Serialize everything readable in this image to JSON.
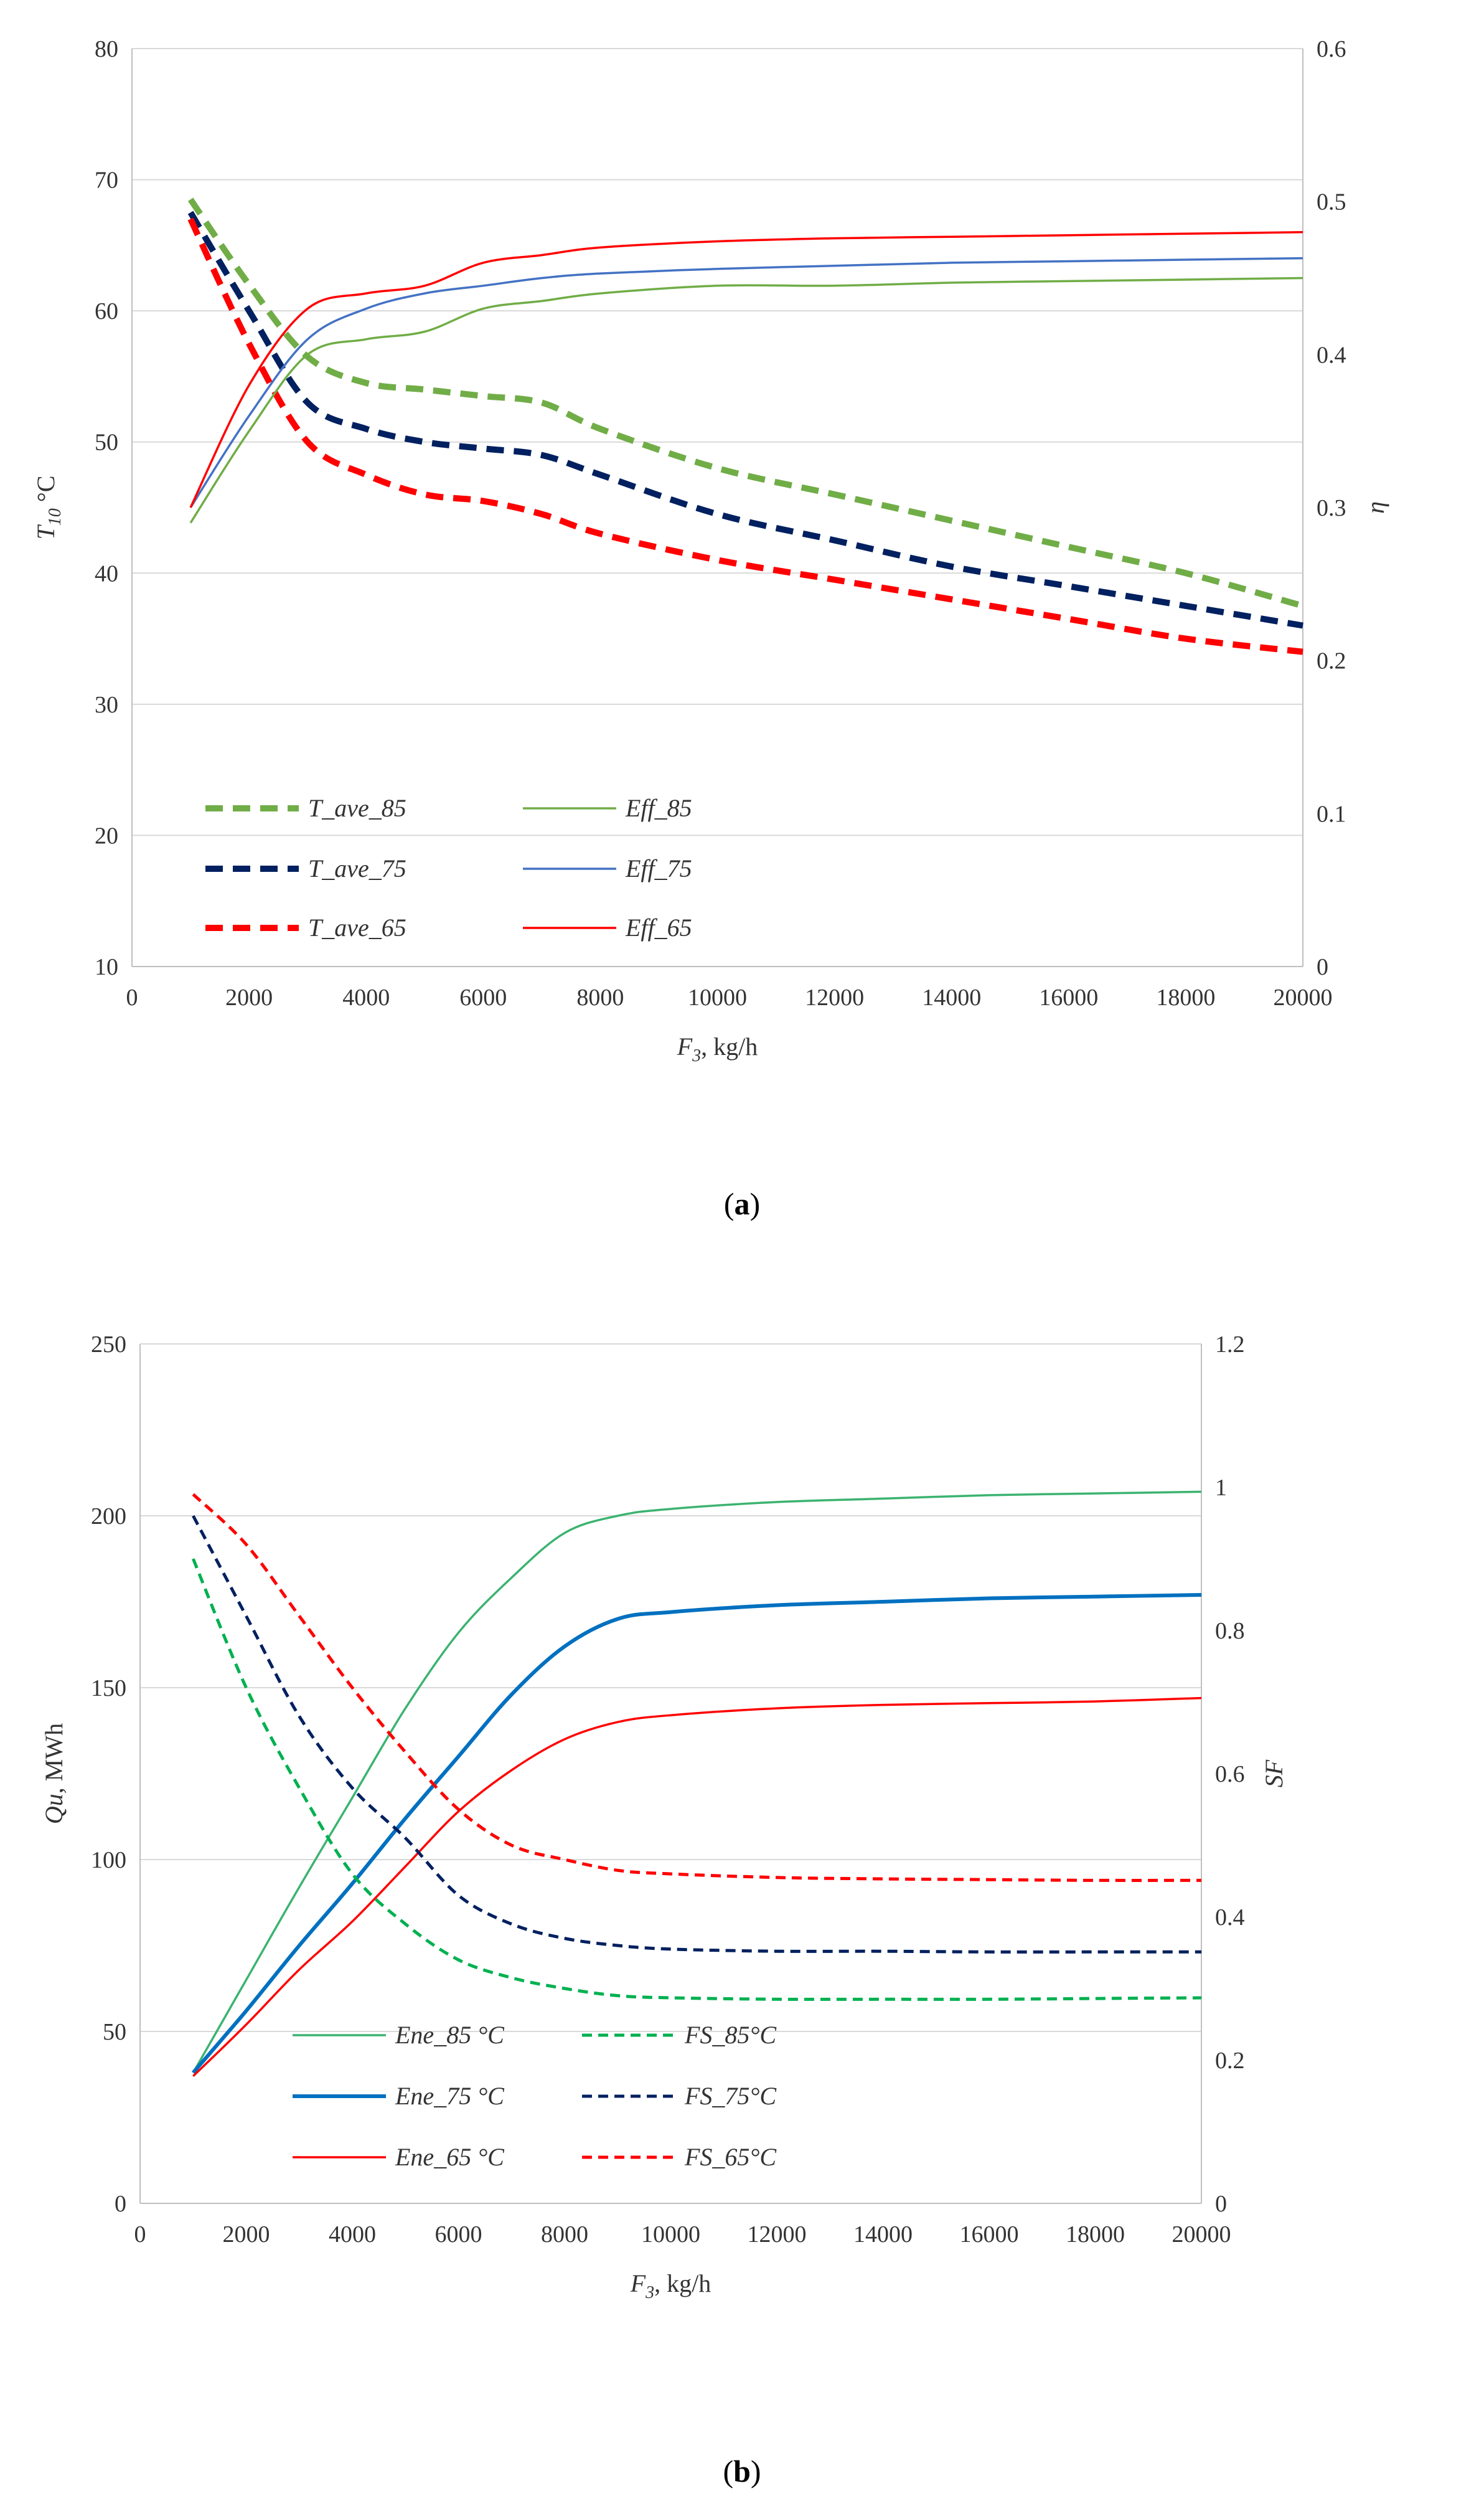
{
  "chart_data": [
    {
      "type": "line",
      "panel_label": "a",
      "xlabel": "F3, kg/h",
      "xlabel_main": "F",
      "xlabel_sub": "3",
      "xlabel_rest": ", kg/h",
      "ylabel": "T10 °C",
      "ylabel_main": "T",
      "ylabel_sub": "10",
      "ylabel_rest": " °C",
      "y2label": "η",
      "xlim": [
        0,
        20000
      ],
      "ylim": [
        10,
        80
      ],
      "y2lim": [
        0,
        0.6
      ],
      "xticks": [
        "0",
        "2000",
        "4000",
        "6000",
        "8000",
        "10000",
        "12000",
        "14000",
        "16000",
        "18000",
        "20000"
      ],
      "yticks": [
        "10",
        "20",
        "30",
        "40",
        "50",
        "60",
        "70",
        "80"
      ],
      "y2ticks": [
        "0",
        "0.1",
        "0.2",
        "0.3",
        "0.4",
        "0.5",
        "0.6"
      ],
      "grid": "horizontal",
      "legend_position": "bottom-left",
      "series": [
        {
          "name": "T_ave_85",
          "axis": "left",
          "color": "#70AD47",
          "style": "dashed-bold",
          "x": [
            1000,
            2000,
            3000,
            4000,
            5000,
            6000,
            7000,
            8000,
            10000,
            12000,
            14000,
            16000,
            18000,
            20000
          ],
          "y": [
            68.5,
            62.0,
            56.5,
            54.5,
            54.0,
            53.5,
            53.0,
            51.0,
            48.0,
            46.0,
            44.0,
            42.0,
            40.0,
            37.5
          ]
        },
        {
          "name": "T_ave_75",
          "axis": "left",
          "color": "#002060",
          "style": "dashed-bold",
          "x": [
            1000,
            2000,
            3000,
            4000,
            5000,
            6000,
            7000,
            8000,
            10000,
            12000,
            14000,
            16000,
            18000,
            20000
          ],
          "y": [
            67.5,
            60.0,
            53.0,
            51.0,
            50.0,
            49.5,
            49.0,
            47.5,
            44.5,
            42.5,
            40.5,
            39.0,
            37.5,
            36.0
          ]
        },
        {
          "name": "T_ave_65",
          "axis": "left",
          "color": "#FF0000",
          "style": "dashed-bold",
          "x": [
            1000,
            2000,
            3000,
            4000,
            5000,
            6000,
            7000,
            8000,
            10000,
            12000,
            14000,
            16000,
            18000,
            20000
          ],
          "y": [
            67.0,
            57.5,
            50.0,
            47.5,
            46.0,
            45.5,
            44.5,
            43.0,
            41.0,
            39.5,
            38.0,
            36.5,
            35.0,
            34.0
          ]
        },
        {
          "name": "Eff_85",
          "axis": "right",
          "color": "#70AD47",
          "style": "thin",
          "x": [
            1000,
            2000,
            3000,
            4000,
            5000,
            6000,
            7000,
            8000,
            10000,
            12000,
            14000,
            16000,
            18000,
            20000
          ],
          "y": [
            0.29,
            0.35,
            0.4,
            0.41,
            0.415,
            0.43,
            0.435,
            0.44,
            0.445,
            0.445,
            0.447,
            0.448,
            0.449,
            0.45
          ]
        },
        {
          "name": "Eff_75",
          "axis": "right",
          "color": "#4472C4",
          "style": "thin",
          "x": [
            1000,
            2000,
            3000,
            4000,
            5000,
            6000,
            7000,
            8000,
            10000,
            12000,
            14000,
            16000,
            18000,
            20000
          ],
          "y": [
            0.3,
            0.36,
            0.41,
            0.43,
            0.44,
            0.445,
            0.45,
            0.453,
            0.456,
            0.458,
            0.46,
            0.461,
            0.462,
            0.463
          ]
        },
        {
          "name": "Eff_65",
          "axis": "right",
          "color": "#FF0000",
          "style": "thin",
          "x": [
            1000,
            2000,
            3000,
            4000,
            5000,
            6000,
            7000,
            8000,
            10000,
            12000,
            14000,
            16000,
            18000,
            20000
          ],
          "y": [
            0.3,
            0.38,
            0.43,
            0.44,
            0.445,
            0.46,
            0.465,
            0.47,
            0.474,
            0.476,
            0.477,
            0.478,
            0.479,
            0.48
          ]
        }
      ]
    },
    {
      "type": "line",
      "panel_label": "b",
      "xlabel": "F3, kg/h",
      "xlabel_main": "F",
      "xlabel_sub": "3",
      "xlabel_rest": ", kg/h",
      "ylabel": "Qu, MWh",
      "ylabel_main": "Qu",
      "ylabel_rest": ", MWh",
      "y2label": "SF",
      "xlim": [
        0,
        20000
      ],
      "ylim": [
        0,
        250
      ],
      "y2lim": [
        0,
        1.2
      ],
      "xticks": [
        "0",
        "2000",
        "4000",
        "6000",
        "8000",
        "10000",
        "12000",
        "14000",
        "16000",
        "18000",
        "20000"
      ],
      "yticks": [
        "0",
        "50",
        "100",
        "150",
        "200",
        "250"
      ],
      "y2ticks": [
        "0",
        "0.2",
        "0.4",
        "0.6",
        "0.8",
        "1",
        "1.2"
      ],
      "grid": "horizontal",
      "legend_position": "bottom-left",
      "series": [
        {
          "name": "Ene_85 °C",
          "axis": "left",
          "color": "#3CB371",
          "style": "thin",
          "x": [
            1000,
            2000,
            3000,
            4000,
            5000,
            6000,
            7000,
            8000,
            9000,
            10000,
            12000,
            14000,
            16000,
            18000,
            20000
          ],
          "y": [
            38,
            65,
            92,
            118,
            144,
            166,
            182,
            195,
            200,
            202,
            204,
            205,
            206,
            206.5,
            207
          ]
        },
        {
          "name": "Ene_75 °C",
          "axis": "left",
          "color": "#0070C0",
          "style": "medium",
          "x": [
            1000,
            2000,
            3000,
            4000,
            5000,
            6000,
            7000,
            8000,
            9000,
            10000,
            12000,
            14000,
            16000,
            18000,
            20000
          ],
          "y": [
            38,
            56,
            75,
            93,
            112,
            130,
            148,
            162,
            170,
            172,
            174,
            175,
            176,
            176.5,
            177
          ]
        },
        {
          "name": "Ene_65 °C",
          "axis": "left",
          "color": "#FF0000",
          "style": "thin",
          "x": [
            1000,
            2000,
            3000,
            4000,
            5000,
            6000,
            7000,
            8000,
            9000,
            10000,
            12000,
            14000,
            16000,
            18000,
            20000
          ],
          "y": [
            37,
            52,
            68,
            82,
            98,
            114,
            126,
            135,
            140,
            142,
            144,
            145,
            145.5,
            146,
            147
          ]
        },
        {
          "name": "FS_85°C",
          "axis": "right",
          "color": "#00B050",
          "style": "dashed",
          "x": [
            1000,
            2000,
            3000,
            4000,
            5000,
            6000,
            7000,
            8000,
            9000,
            10000,
            12000,
            14000,
            16000,
            18000,
            20000
          ],
          "y": [
            0.9,
            0.72,
            0.58,
            0.46,
            0.39,
            0.34,
            0.315,
            0.3,
            0.29,
            0.287,
            0.285,
            0.285,
            0.285,
            0.286,
            0.287
          ]
        },
        {
          "name": "FS_75°C",
          "axis": "right",
          "color": "#002060",
          "style": "dashed",
          "x": [
            1000,
            2000,
            3000,
            4000,
            5000,
            6000,
            7000,
            8000,
            9000,
            10000,
            12000,
            14000,
            16000,
            18000,
            20000
          ],
          "y": [
            0.96,
            0.82,
            0.68,
            0.58,
            0.51,
            0.43,
            0.39,
            0.37,
            0.36,
            0.355,
            0.352,
            0.352,
            0.351,
            0.351,
            0.351
          ]
        },
        {
          "name": "FS_65°C",
          "axis": "right",
          "color": "#FF0000",
          "style": "dashed",
          "x": [
            1000,
            2000,
            3000,
            4000,
            5000,
            6000,
            7000,
            8000,
            9000,
            10000,
            12000,
            14000,
            16000,
            18000,
            20000
          ],
          "y": [
            0.99,
            0.92,
            0.82,
            0.72,
            0.63,
            0.55,
            0.5,
            0.48,
            0.465,
            0.46,
            0.455,
            0.453,
            0.452,
            0.451,
            0.451
          ]
        }
      ]
    }
  ],
  "captions": {
    "a": "a",
    "b": "b"
  }
}
